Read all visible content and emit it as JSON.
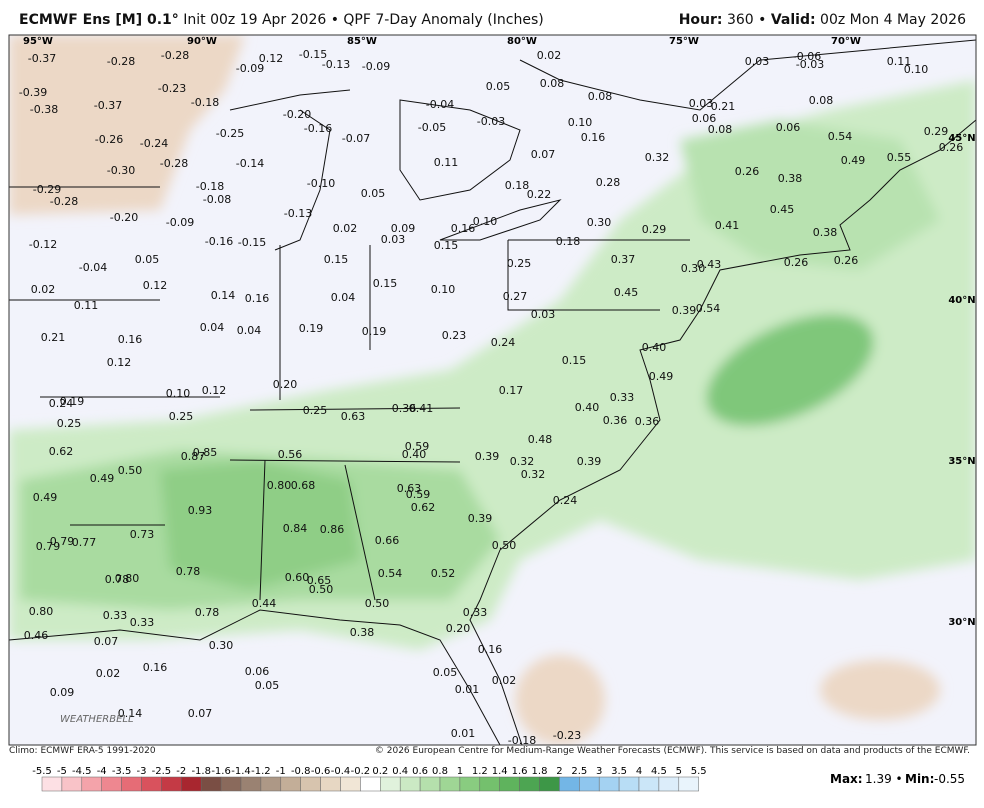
{
  "header": {
    "model": "ECMWF Ens [M] 0.1°",
    "init": "Init 00z 19 Apr 2026 • QPF 7-Day Anomaly (Inches)",
    "hour_label": "Hour:",
    "hour": "360 •",
    "valid_label": "Valid:",
    "valid": "00z Mon 4 May 2026"
  },
  "map": {
    "lon_labels": [
      "95°W",
      "90°W",
      "85°W",
      "80°W",
      "75°W",
      "70°W"
    ],
    "lat_labels": [
      "45°N",
      "40°N",
      "35°N",
      "30°N"
    ],
    "logo": "WEATHERBELL",
    "values": [
      "-0.37",
      "-0.28",
      "-0.28",
      "-0.23",
      "-0.09",
      "0.12",
      "-0.15",
      "-0.13",
      "-0.09",
      "0.02",
      "0.03",
      "-0.06",
      "-0.03",
      "0.11",
      "0.10",
      "-0.39",
      "-0.38",
      "-0.37",
      "-0.18",
      "0.05",
      "0.08",
      "0.08",
      "-0.04",
      "0.03",
      "0.21",
      "0.08",
      "-0.25",
      "-0.20",
      "-0.16",
      "-0.07",
      "-0.05",
      "-0.03",
      "0.10",
      "0.06",
      "0.08",
      "0.06",
      "0.54",
      "0.29",
      "0.26",
      "-0.26",
      "-0.24",
      "-0.28",
      "-0.14",
      "0.16",
      "0.07",
      "0.11",
      "0.32",
      "0.49",
      "0.55",
      "-0.30",
      "-0.18",
      "-0.08",
      "-0.10",
      "0.05",
      "0.18",
      "0.22",
      "0.28",
      "0.26",
      "0.38",
      "-0.29",
      "-0.28",
      "-0.20",
      "-0.09",
      "-0.13",
      "0.02",
      "0.09",
      "0.16",
      "0.10",
      "0.30",
      "0.29",
      "0.41",
      "0.45",
      "0.38",
      "-0.12",
      "-0.16",
      "-0.15",
      "0.03",
      "0.15",
      "0.18",
      "0.05",
      "-0.04",
      "0.15",
      "0.15",
      "0.25",
      "0.37",
      "0.30",
      "0.43",
      "0.26",
      "0.26",
      "0.02",
      "0.12",
      "0.14",
      "0.16",
      "0.04",
      "0.10",
      "0.27",
      "0.45",
      "0.39",
      "0.54",
      "0.11",
      "0.03",
      "0.21",
      "0.16",
      "0.04",
      "0.04",
      "0.19",
      "0.19",
      "0.23",
      "0.24",
      "0.40",
      "0.15",
      "0.12",
      "0.20",
      "0.17",
      "0.33",
      "0.49",
      "0.10",
      "0.12",
      "0.24",
      "0.19",
      "0.25",
      "0.25",
      "0.25",
      "0.63",
      "0.36",
      "0.41",
      "0.40",
      "0.36",
      "0.36",
      "0.62",
      "0.87",
      "0.85",
      "0.56",
      "0.59",
      "0.40",
      "0.48",
      "0.39",
      "0.32",
      "0.39",
      "0.32",
      "0.50",
      "0.49",
      "0.49",
      "0.80",
      "0.68",
      "0.63",
      "0.59",
      "0.62",
      "0.24",
      "0.93",
      "0.73",
      "0.79",
      "0.79",
      "0.77",
      "0.84",
      "0.86",
      "0.66",
      "0.39",
      "0.50",
      "0.78",
      "0.78",
      "0.80",
      "0.60",
      "0.65",
      "0.50",
      "0.54",
      "0.52",
      "0.80",
      "0.33",
      "0.33",
      "0.78",
      "0.44",
      "0.50",
      "0.33",
      "0.38",
      "0.20",
      "0.46",
      "0.07",
      "0.30",
      "0.16",
      "0.02",
      "0.16",
      "0.06",
      "0.05",
      "0.05",
      "0.01",
      "0.02",
      "0.09",
      "0.14",
      "0.07",
      "0.01",
      "-0.18",
      "-0.23"
    ]
  },
  "footer": {
    "climo": "Climo: ECMWF ERA-5 1991-2020",
    "copyright": "© 2026 European Centre for Medium-Range Weather Forecasts (ECMWF). This service is based on data and products of the ECMWF."
  },
  "legend": {
    "labels": [
      "-5.5",
      "-5",
      "-4.5",
      "-4",
      "-3.5",
      "-3",
      "-2.5",
      "-2",
      "-1.8",
      "-1.6",
      "-1.4",
      "-1.2",
      "-1",
      "-0.8",
      "-0.6",
      "-0.4",
      "-0.2",
      "0.2",
      "0.4",
      "0.6",
      "0.8",
      "1",
      "1.2",
      "1.4",
      "1.6",
      "1.8",
      "2",
      "2.5",
      "3",
      "3.5",
      "4",
      "4.5",
      "5",
      "5.5"
    ]
  },
  "stats": {
    "max_label": "Max:",
    "max": "1.39 •",
    "min_label": "Min:",
    "min": "-0.55"
  }
}
